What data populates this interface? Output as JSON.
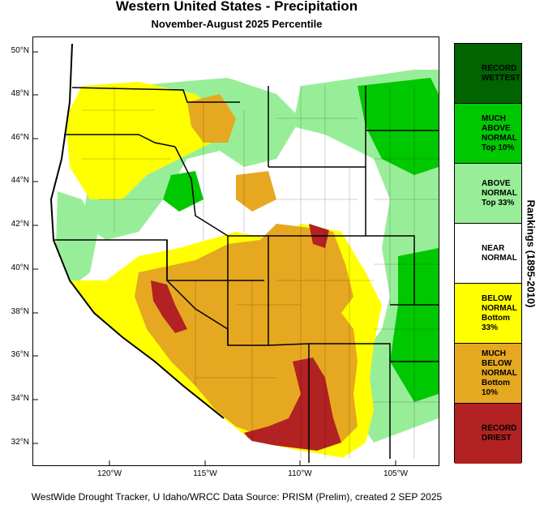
{
  "title": "Western United States - Precipitation",
  "subtitle": "November-August 2025 Percentile",
  "latitude_labels": [
    "50°N",
    "48°N",
    "46°N",
    "44°N",
    "42°N",
    "40°N",
    "38°N",
    "36°N",
    "34°N",
    "32°N"
  ],
  "longitude_labels": [
    "120°W",
    "115°W",
    "110°W",
    "105°W"
  ],
  "legend": {
    "axis_title": "Rankings (1895-2010)",
    "categories": [
      {
        "label": "RECORD\nWETTEST",
        "color": "#006400"
      },
      {
        "label": "MUCH\nABOVE\nNORMAL\nTop 10%",
        "color": "#00c800"
      },
      {
        "label": "ABOVE\nNORMAL\nTop 33%",
        "color": "#98ee98"
      },
      {
        "label": "NEAR\nNORMAL",
        "color": "#ffffff"
      },
      {
        "label": "BELOW\nNORMAL\nBottom 33%",
        "color": "#ffff00"
      },
      {
        "label": "MUCH\nBELOW\nNORMAL\nBottom 10%",
        "color": "#e6a820"
      },
      {
        "label": "RECORD\nDRIEST",
        "color": "#b22222"
      }
    ]
  },
  "footer": "WestWide Drought Tracker, U Idaho/WRCC Data Source: PRISM (Prelim), created  2 SEP 2025"
}
